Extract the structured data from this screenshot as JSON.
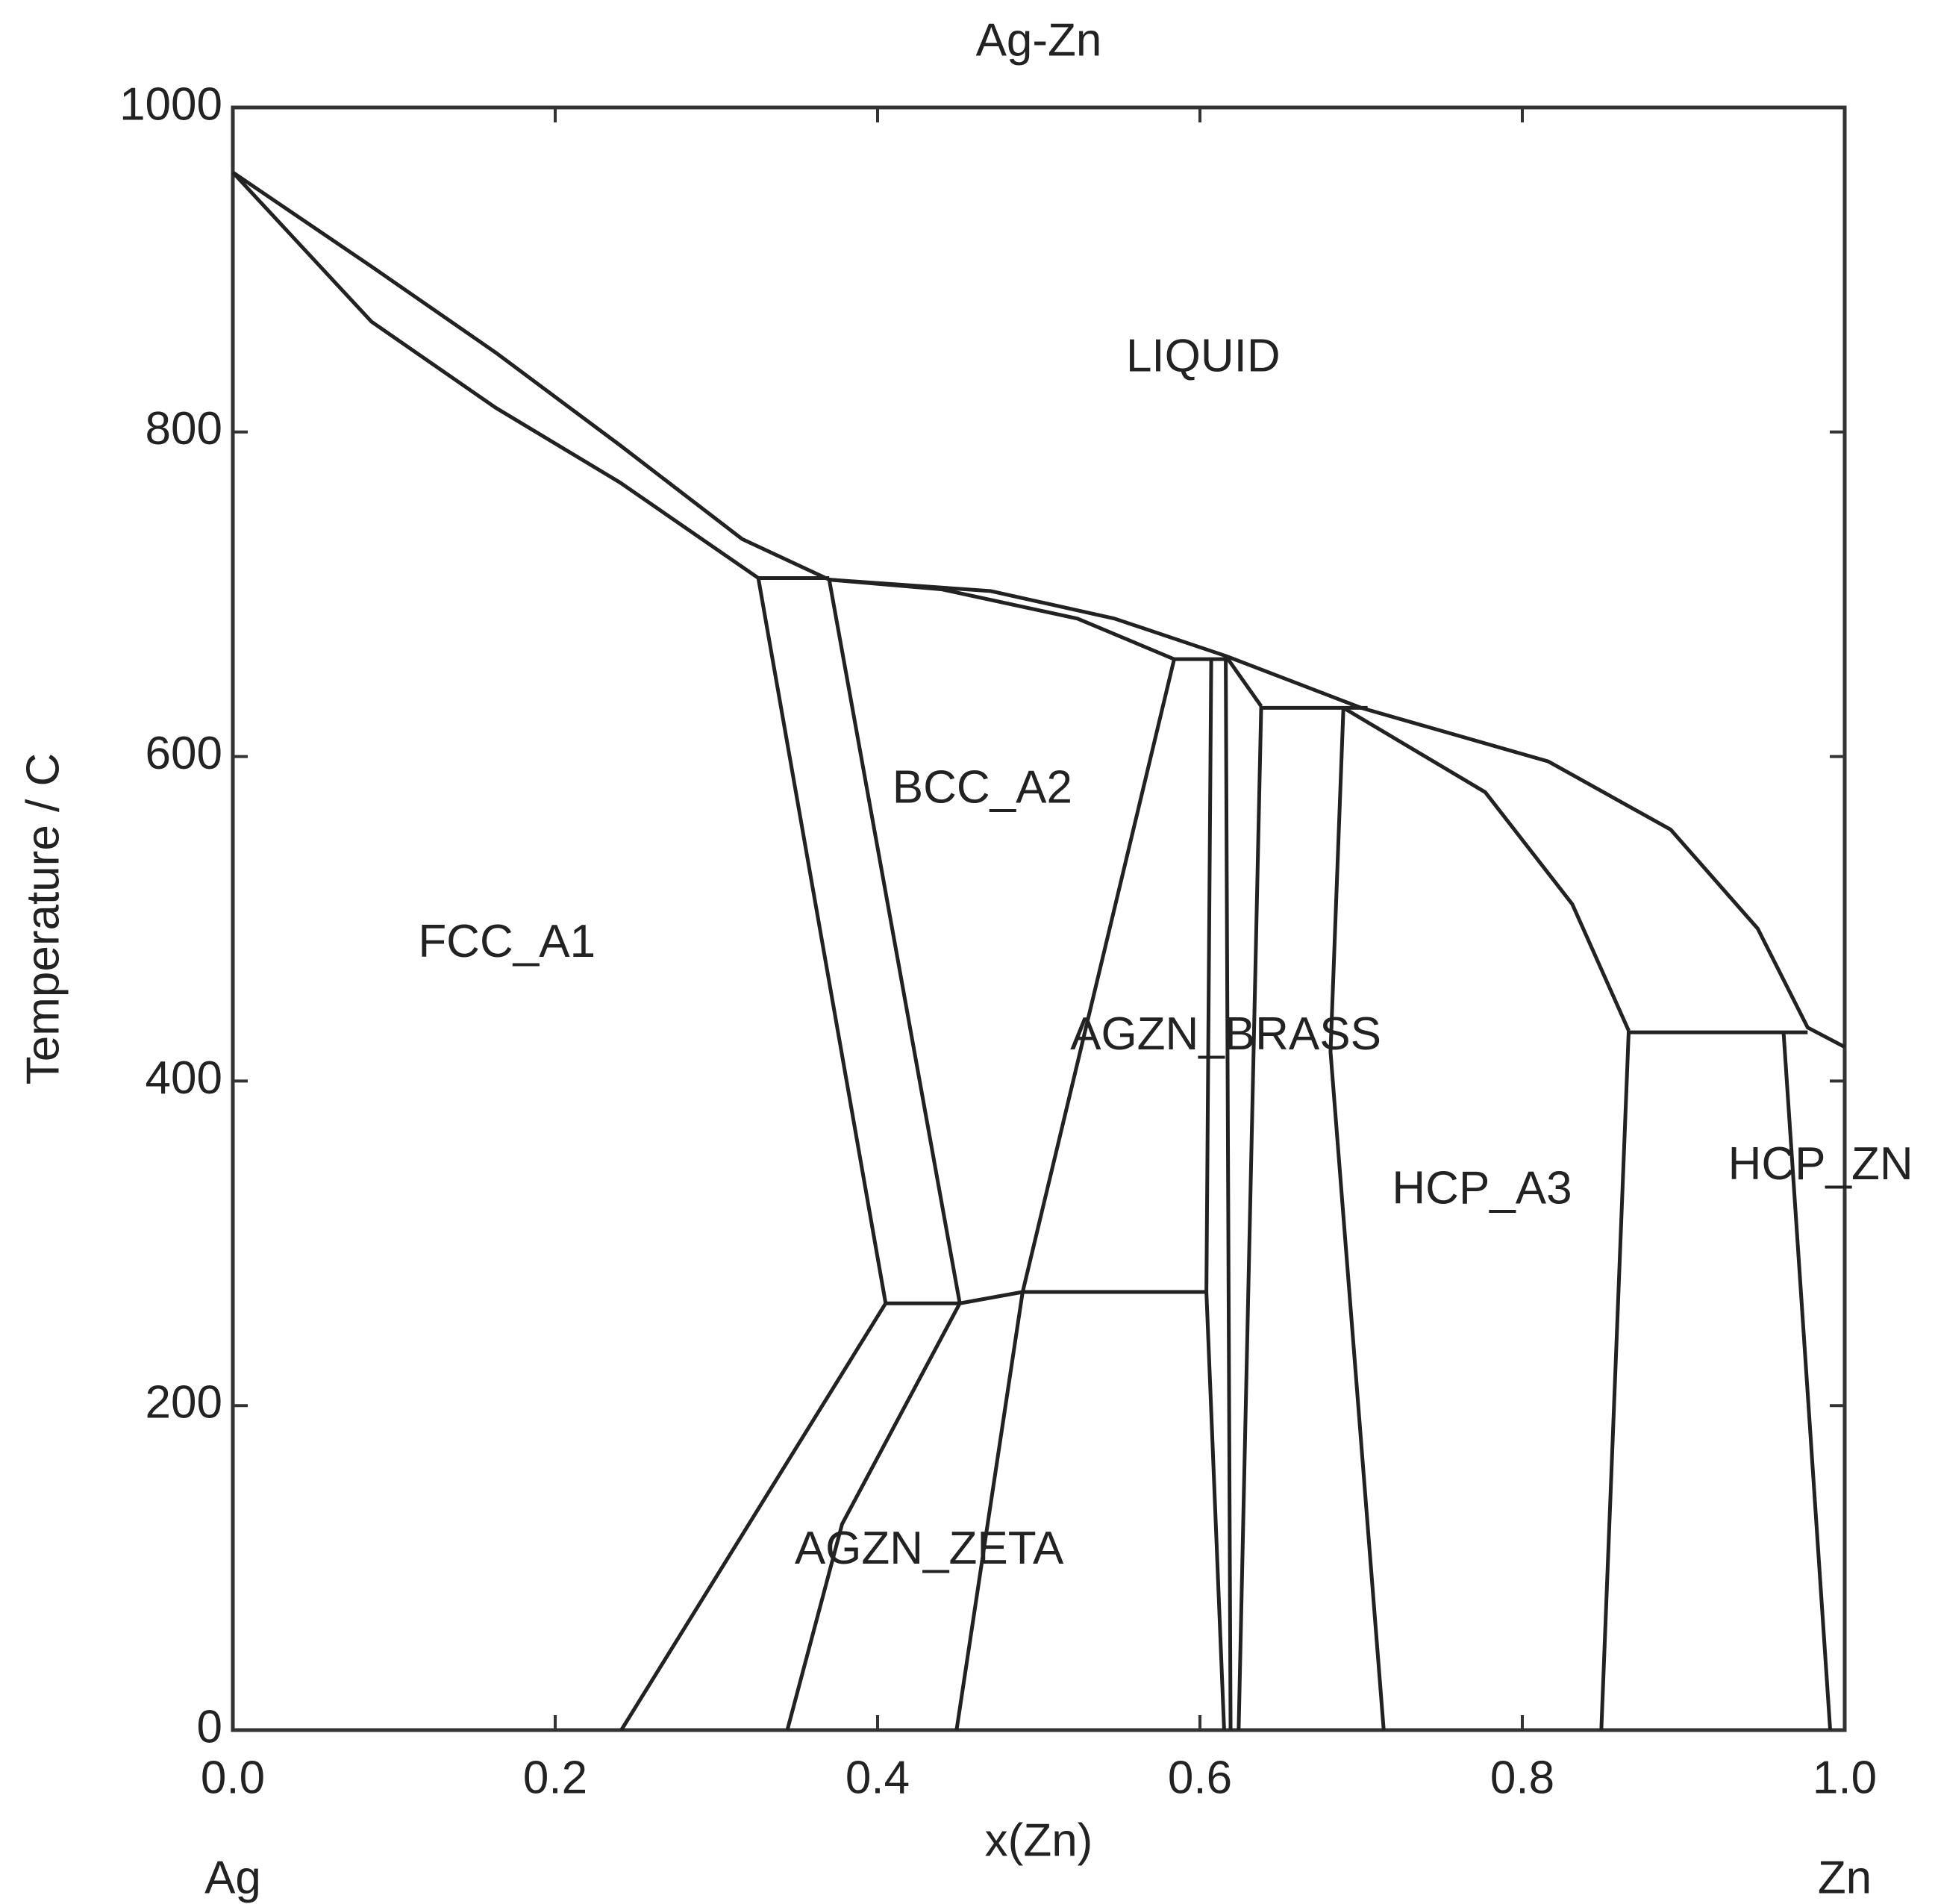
{
  "chart_data": {
    "type": "line",
    "title": "Ag-Zn",
    "x_label": "x(Zn)",
    "y_label": "Temperature / C",
    "x_end_labels": [
      "Ag",
      "Zn"
    ],
    "color": "#222222",
    "xlim": [
      0,
      1
    ],
    "ylim": [
      0,
      1000
    ],
    "xticks": [
      {
        "value": 0,
        "label": "0.0"
      },
      0.2,
      0.4,
      0.6,
      0.8,
      {
        "value": 1,
        "label": "1.0"
      }
    ],
    "yticks": [
      0,
      200,
      400,
      600,
      800,
      1000
    ],
    "series": [
      {
        "x": [
          0.0,
          0.086,
          0.163,
          0.24,
          0.316,
          0.37,
          0.47,
          0.547,
          0.616,
          0.7,
          0.816,
          0.892,
          0.946,
          0.977,
          1.0
        ],
        "values": [
          960,
          902,
          849,
          792,
          734,
          709,
          702,
          685,
          662,
          630,
          597,
          555,
          494,
          433,
          421
        ]
      },
      {
        "x": [
          0.0,
          0.086,
          0.163,
          0.24,
          0.326
        ],
        "values": [
          960,
          868,
          815,
          769,
          710
        ]
      },
      {
        "x": [
          0.326,
          0.37
        ],
        "values": [
          710,
          710
        ]
      },
      {
        "x": [
          0.37,
          0.44,
          0.524,
          0.584
        ],
        "values": [
          709,
          703,
          685,
          660
        ]
      },
      {
        "x": [
          0.584,
          0.616
        ],
        "values": [
          660,
          660
        ]
      },
      {
        "x": [
          0.616,
          0.638
        ],
        "values": [
          662,
          631
        ]
      },
      {
        "x": [
          0.638,
          0.704
        ],
        "values": [
          630,
          630
        ]
      },
      {
        "x": [
          0.689,
          0.777,
          0.831,
          0.866
        ],
        "values": [
          630,
          578,
          509,
          431
        ]
      },
      {
        "x": [
          0.866,
          0.977
        ],
        "values": [
          430,
          430
        ]
      },
      {
        "x": [
          0.326,
          0.405
        ],
        "values": [
          710,
          263
        ]
      },
      {
        "x": [
          0.37,
          0.451
        ],
        "values": [
          709,
          263
        ]
      },
      {
        "x": [
          0.405,
          0.451
        ],
        "values": [
          263,
          263
        ]
      },
      {
        "x": [
          0.451,
          0.49
        ],
        "values": [
          263,
          270
        ]
      },
      {
        "x": [
          0.49,
          0.604
        ],
        "values": [
          270,
          270
        ]
      },
      {
        "x": [
          0.584,
          0.49,
          0.449
        ],
        "values": [
          660,
          270,
          0
        ]
      },
      {
        "x": [
          0.405,
          0.241
        ],
        "values": [
          263,
          0
        ]
      },
      {
        "x": [
          0.451,
          0.378,
          0.344
        ],
        "values": [
          263,
          127,
          0
        ]
      },
      {
        "x": [
          0.607,
          0.604,
          0.615
        ],
        "values": [
          660,
          270,
          0
        ]
      },
      {
        "x": [
          0.616,
          0.619
        ],
        "values": [
          662,
          0
        ]
      },
      {
        "x": [
          0.638,
          0.624
        ],
        "values": [
          631,
          0
        ]
      },
      {
        "x": [
          0.689,
          0.681,
          0.714
        ],
        "values": [
          630,
          418,
          0
        ]
      },
      {
        "x": [
          0.866,
          0.849
        ],
        "values": [
          431,
          0
        ]
      },
      {
        "x": [
          0.962,
          0.991
        ],
        "values": [
          431,
          0
        ]
      }
    ],
    "annotations": [
      {
        "text": "LIQUID",
        "x": 0.602,
        "y": 845
      },
      {
        "text": "BCC_A2",
        "x": 0.465,
        "y": 579
      },
      {
        "text": "FCC_A1",
        "x": 0.17,
        "y": 484
      },
      {
        "text": "AGZN_BRASS",
        "x": 0.616,
        "y": 427
      },
      {
        "text": "HCP_A3",
        "x": 0.775,
        "y": 332
      },
      {
        "text": "HCP_ZN",
        "x": 0.985,
        "y": 347
      },
      {
        "text": "AGZN_ZETA",
        "x": 0.432,
        "y": 110
      }
    ]
  }
}
